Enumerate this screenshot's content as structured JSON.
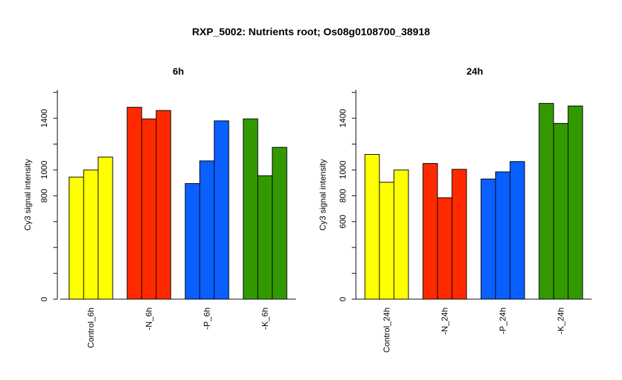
{
  "title": "RXP_5002: Nutrients root; Os08g0108700_38918",
  "chart_data": [
    {
      "type": "bar",
      "title": "6h",
      "ylabel": "Cy3 signal intensity",
      "ylim": [
        0,
        1620
      ],
      "yticks": [
        0,
        800,
        1000,
        1400
      ],
      "categories": [
        "Control_6h",
        "-N_6h",
        "-P_6h",
        "-K_6h"
      ],
      "group_colors": [
        "#ffff00",
        "#ff2a00",
        "#0a5fff",
        "#339900"
      ],
      "series": [
        {
          "values": [
            945,
            1485,
            895,
            1395
          ]
        },
        {
          "values": [
            1000,
            1395,
            1070,
            955
          ]
        },
        {
          "values": [
            1100,
            1460,
            1380,
            1175
          ]
        }
      ]
    },
    {
      "type": "bar",
      "title": "24h",
      "ylabel": "Cy3 signal intensity",
      "ylim": [
        0,
        1620
      ],
      "yticks": [
        0,
        600,
        800,
        1000,
        1400
      ],
      "categories": [
        "Control_24h",
        "-N_24h",
        "-P_24h",
        "-K_24h"
      ],
      "group_colors": [
        "#ffff00",
        "#ff2a00",
        "#0a5fff",
        "#339900"
      ],
      "series": [
        {
          "values": [
            1120,
            1050,
            930,
            1515
          ]
        },
        {
          "values": [
            905,
            785,
            985,
            1360
          ]
        },
        {
          "values": [
            1000,
            1005,
            1065,
            1495
          ]
        }
      ]
    }
  ]
}
